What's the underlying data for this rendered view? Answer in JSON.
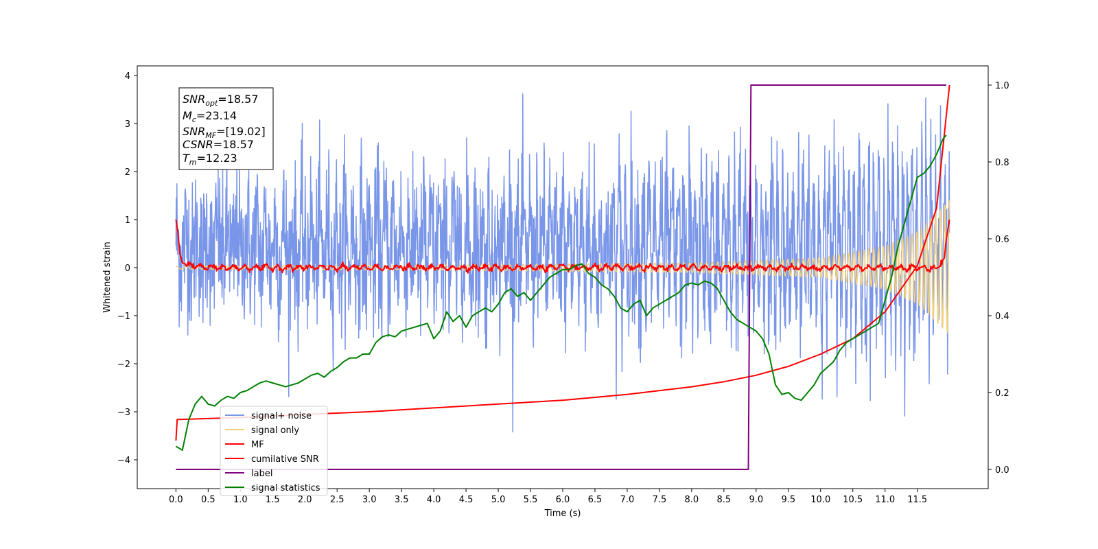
{
  "chart_data": {
    "type": "line",
    "xlabel": "Time (s)",
    "ylabel": "Whitened strain",
    "xlim": [
      -0.6,
      12.6
    ],
    "ylim": [
      -4.6,
      4.2
    ],
    "y2lim": [
      -0.05,
      1.05
    ],
    "xticks": [
      0.0,
      0.5,
      1.0,
      1.5,
      2.0,
      2.5,
      3.0,
      3.5,
      4.0,
      4.5,
      5.0,
      5.5,
      6.0,
      6.5,
      7.0,
      7.5,
      8.0,
      8.5,
      9.0,
      9.5,
      10.0,
      10.5,
      11.0,
      11.5
    ],
    "xtick_labels": [
      "0.0",
      "0.5",
      "1.0",
      "1.5",
      "2.0",
      "2.5",
      "3.0",
      "3.5",
      "4.0",
      "4.5",
      "5.0",
      "5.5",
      "6.0",
      "6.5",
      "7.0",
      "7.5",
      "8.0",
      "8.5",
      "9.0",
      "9.5",
      "10.0",
      "10.5",
      "11.0",
      "11.5"
    ],
    "yticks": [
      -4,
      -3,
      -2,
      -1,
      0,
      1,
      2,
      3,
      4
    ],
    "ytick_labels": [
      "−4",
      "−3",
      "−2",
      "−1",
      "0",
      "1",
      "2",
      "3",
      "4"
    ],
    "y2ticks": [
      0.0,
      0.2,
      0.4,
      0.6,
      0.8,
      1.0
    ],
    "y2tick_labels": [
      "0.0",
      "0.2",
      "0.4",
      "0.6",
      "0.8",
      "1.0"
    ],
    "grid": false,
    "legend_position": "bottom-left",
    "annotation": {
      "lines": [
        {
          "base": "SNR",
          "sub": "opt",
          "value": "=18.57"
        },
        {
          "base": "M",
          "sub": "c",
          "value": "=23.14"
        },
        {
          "base": "SNR",
          "sub": "MF",
          "value": "=[19.02]"
        },
        {
          "base": "CSNR",
          "sub": "",
          "value": "=18.57"
        },
        {
          "base": "T",
          "sub": "m",
          "value": "=12.23"
        }
      ]
    },
    "series": [
      {
        "name": "signal+ noise",
        "color": "#7a96e8",
        "axis": "left",
        "kind": "noise",
        "sigma": 0.78,
        "amplitude_envelope": {
          "x": [
            0.0,
            12.0
          ],
          "y": [
            0.25,
            1.45
          ]
        }
      },
      {
        "name": "signal only",
        "color": "#f5d27a",
        "axis": "left",
        "kind": "chirp",
        "amplitude_envelope": {
          "x": [
            0.0,
            4.0,
            8.0,
            10.0,
            11.0,
            11.5,
            12.0
          ],
          "y": [
            0.03,
            0.05,
            0.1,
            0.2,
            0.45,
            0.75,
            1.4
          ]
        }
      },
      {
        "name": "MF",
        "color": "#ff0000",
        "axis": "left",
        "kind": "mf",
        "x": [
          0.0,
          0.03,
          0.06,
          0.1,
          0.2,
          0.5,
          1.0,
          6.0,
          11.5,
          11.8,
          11.92,
          11.95,
          12.0
        ],
        "y": [
          1.0,
          0.75,
          0.3,
          0.1,
          0.05,
          0.0,
          0.0,
          0.0,
          0.0,
          -0.02,
          0.2,
          0.6,
          1.0
        ]
      },
      {
        "name": "cumilative SNR",
        "color": "#ff0000",
        "axis": "right",
        "x": [
          0.0,
          0.02,
          0.05,
          1.0,
          2.0,
          3.0,
          4.0,
          5.0,
          6.0,
          7.0,
          8.0,
          8.5,
          9.0,
          9.5,
          10.0,
          10.5,
          11.0,
          11.5,
          11.8,
          12.0
        ],
        "y": [
          0.075,
          0.13,
          0.13,
          0.135,
          0.143,
          0.15,
          0.16,
          0.17,
          0.18,
          0.195,
          0.215,
          0.228,
          0.245,
          0.268,
          0.3,
          0.34,
          0.41,
          0.53,
          0.68,
          1.0
        ]
      },
      {
        "name": "label",
        "color": "#800080",
        "axis": "right",
        "x": [
          0.0,
          8.88,
          8.92,
          11.95
        ],
        "y": [
          0.0,
          0.0,
          1.0,
          1.0
        ]
      },
      {
        "name": "signal statistics",
        "color": "#008000",
        "axis": "right",
        "x": [
          0.0,
          0.1,
          0.2,
          0.3,
          0.4,
          0.5,
          0.6,
          0.7,
          0.8,
          0.9,
          1.0,
          1.1,
          1.2,
          1.3,
          1.4,
          1.5,
          1.6,
          1.7,
          1.8,
          1.9,
          2.0,
          2.1,
          2.2,
          2.3,
          2.4,
          2.5,
          2.6,
          2.7,
          2.8,
          2.9,
          3.0,
          3.1,
          3.2,
          3.3,
          3.4,
          3.5,
          3.6,
          3.7,
          3.8,
          3.9,
          4.0,
          4.1,
          4.2,
          4.3,
          4.4,
          4.5,
          4.6,
          4.7,
          4.8,
          4.9,
          5.0,
          5.1,
          5.2,
          5.3,
          5.4,
          5.5,
          5.6,
          5.7,
          5.8,
          5.9,
          6.0,
          6.1,
          6.2,
          6.3,
          6.4,
          6.5,
          6.6,
          6.7,
          6.8,
          6.9,
          7.0,
          7.1,
          7.2,
          7.3,
          7.4,
          7.5,
          7.6,
          7.7,
          7.8,
          7.9,
          8.0,
          8.1,
          8.2,
          8.3,
          8.4,
          8.5,
          8.6,
          8.7,
          8.8,
          8.9,
          9.0,
          9.1,
          9.2,
          9.3,
          9.4,
          9.5,
          9.6,
          9.7,
          9.8,
          9.9,
          10.0,
          10.1,
          10.2,
          10.3,
          10.4,
          10.5,
          10.6,
          10.7,
          10.8,
          10.9,
          11.0,
          11.1,
          11.2,
          11.3,
          11.4,
          11.5,
          11.6,
          11.7,
          11.8,
          11.9,
          11.95
        ],
        "y": [
          0.06,
          0.05,
          0.13,
          0.17,
          0.19,
          0.17,
          0.165,
          0.18,
          0.19,
          0.185,
          0.2,
          0.205,
          0.215,
          0.225,
          0.23,
          0.225,
          0.22,
          0.215,
          0.22,
          0.225,
          0.235,
          0.245,
          0.25,
          0.24,
          0.255,
          0.265,
          0.28,
          0.29,
          0.29,
          0.3,
          0.3,
          0.33,
          0.345,
          0.35,
          0.345,
          0.36,
          0.365,
          0.37,
          0.375,
          0.38,
          0.34,
          0.36,
          0.41,
          0.385,
          0.4,
          0.37,
          0.4,
          0.41,
          0.42,
          0.41,
          0.43,
          0.46,
          0.47,
          0.45,
          0.46,
          0.44,
          0.46,
          0.48,
          0.5,
          0.51,
          0.52,
          0.52,
          0.53,
          0.535,
          0.51,
          0.5,
          0.48,
          0.47,
          0.45,
          0.42,
          0.41,
          0.43,
          0.44,
          0.4,
          0.42,
          0.43,
          0.44,
          0.45,
          0.46,
          0.48,
          0.485,
          0.48,
          0.49,
          0.485,
          0.47,
          0.44,
          0.41,
          0.39,
          0.38,
          0.37,
          0.36,
          0.34,
          0.3,
          0.22,
          0.195,
          0.2,
          0.185,
          0.18,
          0.2,
          0.22,
          0.25,
          0.265,
          0.28,
          0.31,
          0.33,
          0.34,
          0.35,
          0.36,
          0.37,
          0.38,
          0.44,
          0.5,
          0.58,
          0.64,
          0.7,
          0.76,
          0.77,
          0.79,
          0.82,
          0.86,
          0.87
        ]
      }
    ]
  }
}
